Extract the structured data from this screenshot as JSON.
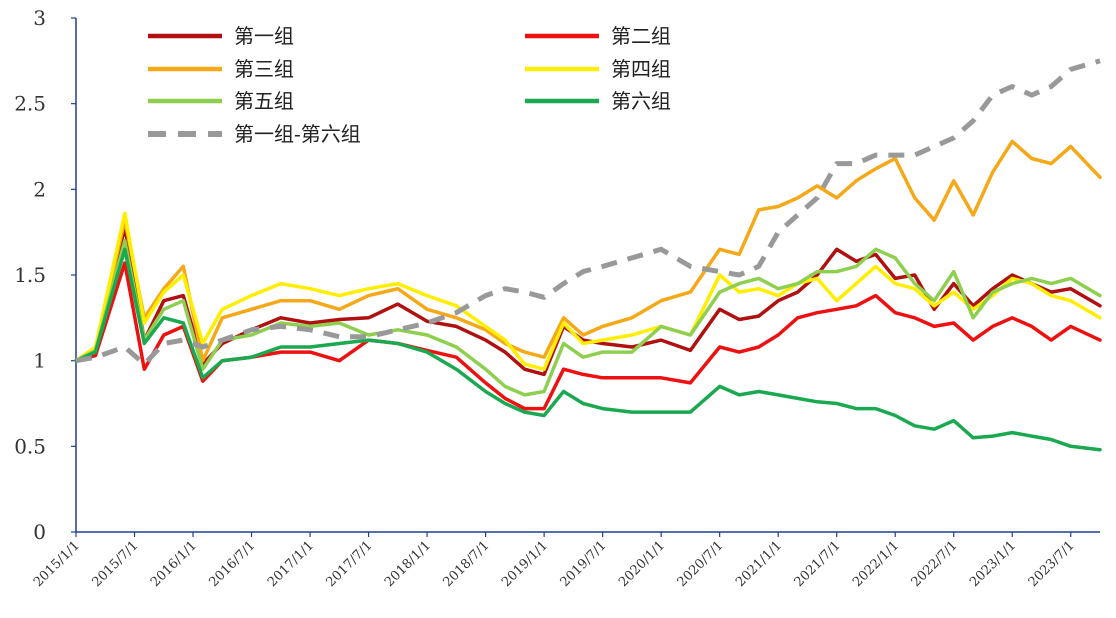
{
  "chart_data": {
    "type": "line",
    "title": "",
    "xlabel": "",
    "ylabel": "",
    "ylim": [
      0,
      3
    ],
    "yticks": [
      "0",
      "0.5",
      "1",
      "1.5",
      "2",
      "2.5",
      "3"
    ],
    "xticks": [
      "2015/1/1",
      "2015/7/1",
      "2016/1/1",
      "2016/7/1",
      "2017/1/1",
      "2017/7/1",
      "2018/1/1",
      "2018/7/1",
      "2019/1/1",
      "2019/7/1",
      "2020/1/1",
      "2020/7/1",
      "2021/1/1",
      "2021/7/1",
      "2022/1/1",
      "2022/7/1",
      "2023/1/1",
      "2023/7/1"
    ],
    "grid": false,
    "legend_position": "top-left",
    "x_start": "2015/1/1",
    "x_end": "2023/10/1",
    "x": [
      "2015/1/1",
      "2015/3/1",
      "2015/6/1",
      "2015/8/1",
      "2015/10/1",
      "2015/12/1",
      "2016/2/1",
      "2016/4/1",
      "2016/7/1",
      "2016/10/1",
      "2017/1/1",
      "2017/4/1",
      "2017/7/1",
      "2017/10/1",
      "2018/1/1",
      "2018/4/1",
      "2018/7/1",
      "2018/9/1",
      "2018/11/1",
      "2019/1/1",
      "2019/3/1",
      "2019/5/1",
      "2019/7/1",
      "2019/10/1",
      "2020/1/1",
      "2020/4/1",
      "2020/7/1",
      "2020/9/1",
      "2020/11/1",
      "2021/1/1",
      "2021/3/1",
      "2021/5/1",
      "2021/7/1",
      "2021/9/1",
      "2021/11/1",
      "2022/1/1",
      "2022/3/1",
      "2022/5/1",
      "2022/7/1",
      "2022/9/1",
      "2022/11/1",
      "2023/1/1",
      "2023/3/1",
      "2023/5/1",
      "2023/7/1",
      "2023/10/1"
    ],
    "series": [
      {
        "name": "第一组",
        "color": "#b01010",
        "dash": false,
        "values": [
          1.0,
          1.05,
          1.78,
          1.12,
          1.35,
          1.38,
          0.98,
          1.1,
          1.18,
          1.25,
          1.22,
          1.24,
          1.25,
          1.33,
          1.23,
          1.2,
          1.12,
          1.05,
          0.95,
          0.92,
          1.2,
          1.12,
          1.1,
          1.08,
          1.12,
          1.06,
          1.3,
          1.24,
          1.26,
          1.35,
          1.4,
          1.5,
          1.65,
          1.58,
          1.62,
          1.48,
          1.5,
          1.3,
          1.45,
          1.32,
          1.42,
          1.5,
          1.45,
          1.4,
          1.42,
          1.32
        ]
      },
      {
        "name": "第二组",
        "color": "#ee1111",
        "dash": false,
        "values": [
          1.0,
          1.03,
          1.57,
          0.95,
          1.15,
          1.2,
          0.88,
          1.0,
          1.02,
          1.05,
          1.05,
          1.0,
          1.12,
          1.1,
          1.06,
          1.02,
          0.87,
          0.78,
          0.72,
          0.72,
          0.95,
          0.92,
          0.9,
          0.9,
          0.9,
          0.87,
          1.08,
          1.05,
          1.08,
          1.15,
          1.25,
          1.28,
          1.3,
          1.32,
          1.38,
          1.28,
          1.25,
          1.2,
          1.22,
          1.12,
          1.2,
          1.25,
          1.2,
          1.12,
          1.2,
          1.12
        ]
      },
      {
        "name": "第三组",
        "color": "#f5a818",
        "dash": false,
        "values": [
          1.0,
          1.07,
          1.82,
          1.25,
          1.42,
          1.55,
          1.0,
          1.25,
          1.3,
          1.35,
          1.35,
          1.3,
          1.38,
          1.42,
          1.3,
          1.25,
          1.18,
          1.1,
          1.05,
          1.02,
          1.25,
          1.15,
          1.2,
          1.25,
          1.35,
          1.4,
          1.65,
          1.62,
          1.88,
          1.9,
          1.95,
          2.02,
          1.95,
          2.05,
          2.12,
          2.18,
          1.95,
          1.82,
          2.05,
          1.85,
          2.1,
          2.28,
          2.18,
          2.15,
          2.25,
          2.07
        ]
      },
      {
        "name": "第四组",
        "color": "#ffee00",
        "dash": false,
        "values": [
          1.0,
          1.08,
          1.86,
          1.22,
          1.4,
          1.5,
          1.1,
          1.3,
          1.38,
          1.45,
          1.42,
          1.38,
          1.42,
          1.45,
          1.38,
          1.32,
          1.2,
          1.12,
          0.98,
          0.95,
          1.22,
          1.1,
          1.12,
          1.15,
          1.2,
          1.15,
          1.5,
          1.4,
          1.42,
          1.38,
          1.45,
          1.48,
          1.35,
          1.45,
          1.55,
          1.45,
          1.42,
          1.32,
          1.4,
          1.3,
          1.38,
          1.48,
          1.45,
          1.38,
          1.35,
          1.25
        ]
      },
      {
        "name": "第五组",
        "color": "#8ecf50",
        "dash": false,
        "values": [
          1.0,
          1.06,
          1.7,
          1.12,
          1.3,
          1.35,
          0.95,
          1.12,
          1.15,
          1.22,
          1.2,
          1.22,
          1.15,
          1.18,
          1.15,
          1.08,
          0.95,
          0.85,
          0.8,
          0.82,
          1.1,
          1.02,
          1.05,
          1.05,
          1.2,
          1.15,
          1.4,
          1.45,
          1.48,
          1.42,
          1.45,
          1.52,
          1.52,
          1.55,
          1.65,
          1.6,
          1.45,
          1.35,
          1.52,
          1.25,
          1.4,
          1.45,
          1.48,
          1.45,
          1.48,
          1.38
        ]
      },
      {
        "name": "第六组",
        "color": "#1aa850",
        "dash": false,
        "values": [
          1.0,
          1.05,
          1.65,
          1.1,
          1.25,
          1.22,
          0.9,
          1.0,
          1.02,
          1.08,
          1.08,
          1.1,
          1.12,
          1.1,
          1.05,
          0.95,
          0.82,
          0.75,
          0.7,
          0.68,
          0.82,
          0.75,
          0.72,
          0.7,
          0.7,
          0.7,
          0.85,
          0.8,
          0.82,
          0.8,
          0.78,
          0.76,
          0.75,
          0.72,
          0.72,
          0.68,
          0.62,
          0.6,
          0.65,
          0.55,
          0.56,
          0.58,
          0.56,
          0.54,
          0.5,
          0.48
        ]
      },
      {
        "name": "第一组-第六组",
        "color": "#999999",
        "dash": true,
        "values": [
          1.0,
          1.02,
          1.08,
          0.98,
          1.1,
          1.12,
          1.08,
          1.12,
          1.18,
          1.2,
          1.18,
          1.14,
          1.14,
          1.18,
          1.22,
          1.28,
          1.38,
          1.42,
          1.4,
          1.37,
          1.45,
          1.52,
          1.55,
          1.6,
          1.65,
          1.55,
          1.52,
          1.5,
          1.55,
          1.75,
          1.85,
          1.95,
          2.15,
          2.15,
          2.2,
          2.2,
          2.2,
          2.25,
          2.3,
          2.4,
          2.55,
          2.6,
          2.55,
          2.6,
          2.7,
          2.75
        ]
      }
    ]
  }
}
